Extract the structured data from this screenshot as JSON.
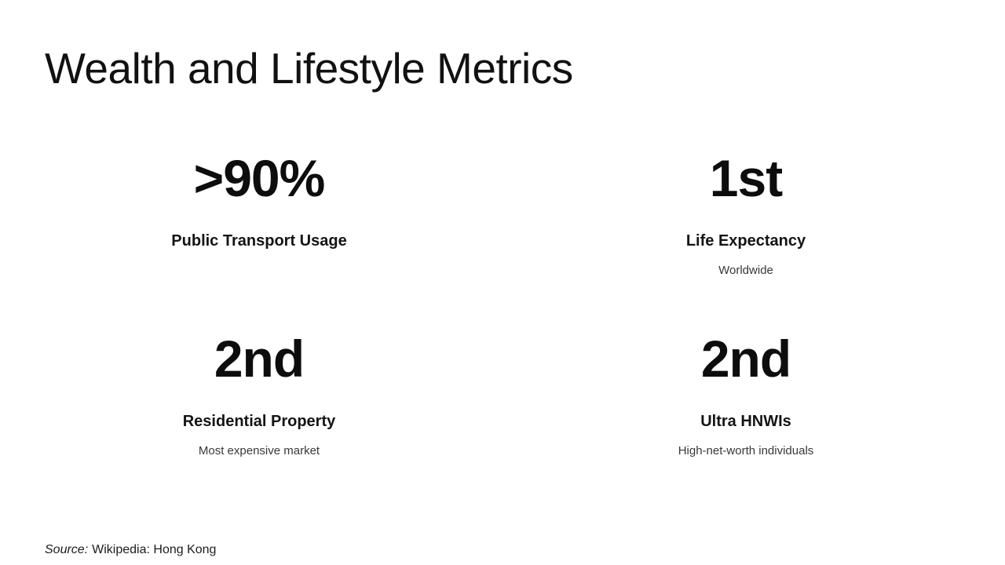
{
  "slide": {
    "title": "Wealth and Lifestyle Metrics",
    "colors": {
      "background": "#ffffff",
      "text": "#111111",
      "muted": "#383838"
    },
    "stats": [
      {
        "value": ">90%",
        "label": "Public Transport Usage",
        "sublabel": ""
      },
      {
        "value": "1st",
        "label": "Life Expectancy",
        "sublabel": "Worldwide"
      },
      {
        "value": "2nd",
        "label": "Residential Property",
        "sublabel": "Most expensive market"
      },
      {
        "value": "2nd",
        "label": "Ultra HNWIs",
        "sublabel": "High-net-worth individuals"
      }
    ],
    "source": {
      "prefix": "Source:",
      "text": "Wikipedia: Hong Kong"
    }
  }
}
